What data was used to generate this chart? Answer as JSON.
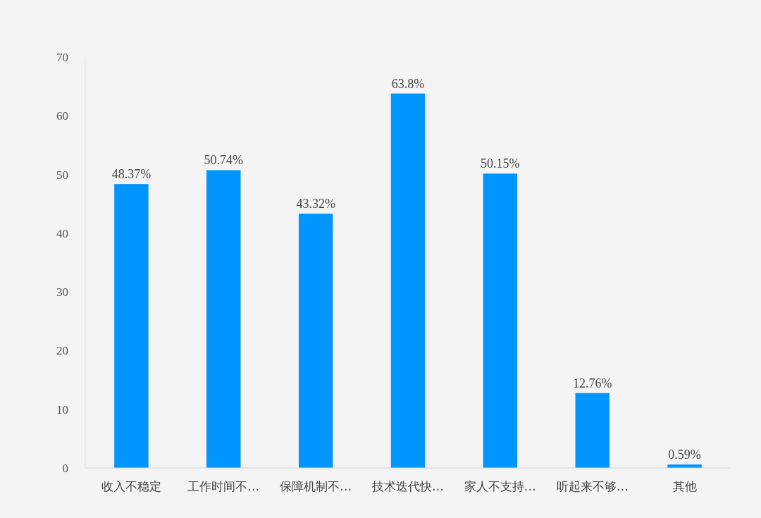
{
  "chart_data": {
    "type": "bar",
    "categories": [
      "收入不稳定",
      "工作时间不…",
      "保障机制不…",
      "技术迭代快…",
      "家人不支持…",
      "听起来不够…",
      "其他"
    ],
    "values": [
      48.37,
      50.74,
      43.32,
      63.8,
      50.15,
      12.76,
      0.59
    ],
    "value_labels": [
      "48.37%",
      "50.74%",
      "43.32%",
      "63.8%",
      "50.15%",
      "12.76%",
      "0.59%"
    ],
    "color": "#0095ff",
    "ylim": [
      0,
      70
    ],
    "yticks": [
      0,
      10,
      20,
      30,
      40,
      50,
      60,
      70
    ]
  }
}
